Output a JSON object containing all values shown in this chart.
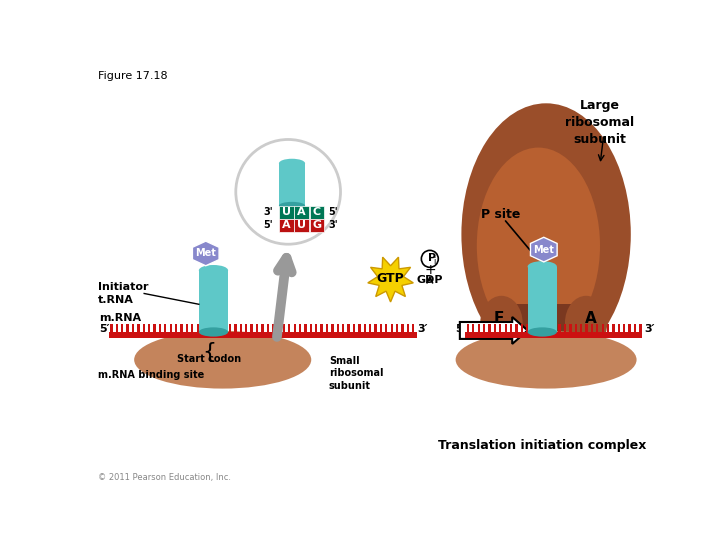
{
  "figure_label": "Figure 17.18",
  "bg_color": "#ffffff",
  "large_ribosomal_label": "Large\nribosomal\nsubunit",
  "p_site_label": "P site",
  "initiator_trna_label": "Initiator\nt.RNA",
  "mrna_label": "m.RNA",
  "five_prime": "5′",
  "three_prime": "3′",
  "start_codon_label": "Start codon",
  "mrna_binding_label": "m.RNA binding site",
  "small_ribo_label": "Small\nribosomal\nsubunit",
  "translation_label": "Translation initiation complex",
  "gtp_label": "GTP",
  "met_label": "Met",
  "e_label": "E",
  "a_label": "A",
  "trna_color": "#5ec8c8",
  "mrna_color": "#cc1111",
  "small_subunit_color": "#c4845c",
  "large_subunit_color": "#9a4e2a",
  "large_subunit_color2": "#b86030",
  "met_color": "#8888cc",
  "gtp_color": "#f5d000",
  "codon_top_colors": [
    "#007755",
    "#007755",
    "#007755"
  ],
  "codon_bottom_colors": [
    "#bb1111",
    "#bb1111",
    "#bb1111"
  ],
  "codon_top_letters": [
    "U",
    "A",
    "C"
  ],
  "codon_bottom_letters": [
    "A",
    "U",
    "G"
  ],
  "copyright": "© 2011 Pearson Education, Inc."
}
